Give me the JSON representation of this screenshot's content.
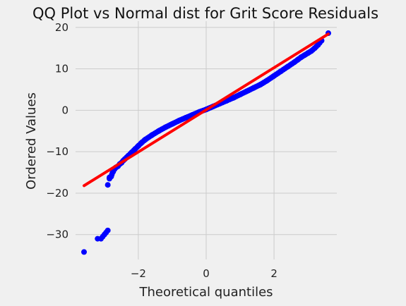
{
  "chart_data": {
    "type": "scatter",
    "title": "QQ Plot vs Normal dist for Grit Score Residuals",
    "xlabel": "Theoretical quantiles",
    "ylabel": "Ordered Values",
    "xlim": [
      -3.85,
      3.85
    ],
    "ylim": [
      -36,
      21.5
    ],
    "xticks": [
      -2,
      0,
      2
    ],
    "xtick_labels": [
      "−2",
      "0",
      "2"
    ],
    "yticks": [
      20,
      10,
      0,
      -10,
      -20,
      -30
    ],
    "ytick_labels": [
      "20",
      "10",
      "0",
      "−10",
      "−20",
      "−30"
    ],
    "grid": true,
    "colors": {
      "points": "#0000ff",
      "fit_line": "#ff0000",
      "background": "#f0f0f0",
      "grid": "#cbcbcb"
    },
    "series": [
      {
        "kind": "points",
        "x": [
          -3.6,
          -3.2,
          -3.1,
          -3.05,
          -3.0,
          -2.95,
          -2.9,
          -2.9,
          -2.85,
          -2.85,
          -2.8,
          -2.78,
          -2.76,
          -2.74,
          -2.7,
          -2.66,
          -2.6,
          -2.55,
          -2.5,
          -2.45,
          -2.4,
          -2.3,
          -2.2,
          -2.1,
          -2.0,
          -1.9,
          -1.8,
          -1.6,
          -1.4,
          -1.2,
          -1.0,
          -0.8,
          -0.6,
          -0.4,
          -0.2,
          0.0,
          0.2,
          0.4,
          0.6,
          0.8,
          1.0,
          1.2,
          1.4,
          1.6,
          1.8,
          2.0,
          2.2,
          2.4,
          2.6,
          2.7,
          2.8,
          2.9,
          3.0,
          3.1,
          3.2,
          3.3,
          3.4,
          3.6
        ],
        "y": [
          -34.2,
          -31.0,
          -31.0,
          -30.5,
          -30.0,
          -29.5,
          -29.0,
          -18.0,
          -16.5,
          -16.2,
          -16.0,
          -15.5,
          -15.0,
          -14.8,
          -14.2,
          -13.8,
          -13.5,
          -13.0,
          -12.7,
          -12.2,
          -11.8,
          -11.0,
          -10.2,
          -9.4,
          -8.6,
          -7.8,
          -7.1,
          -6.0,
          -5.0,
          -4.1,
          -3.3,
          -2.5,
          -1.8,
          -1.1,
          -0.4,
          0.2,
          0.9,
          1.6,
          2.3,
          3.0,
          3.8,
          4.6,
          5.4,
          6.2,
          7.2,
          8.3,
          9.4,
          10.5,
          11.6,
          12.2,
          12.8,
          13.3,
          13.8,
          14.3,
          15.0,
          15.8,
          16.8,
          18.6
        ]
      },
      {
        "kind": "fit_line",
        "x": [
          -3.6,
          3.6
        ],
        "y": [
          -18.2,
          18.4
        ]
      }
    ]
  }
}
